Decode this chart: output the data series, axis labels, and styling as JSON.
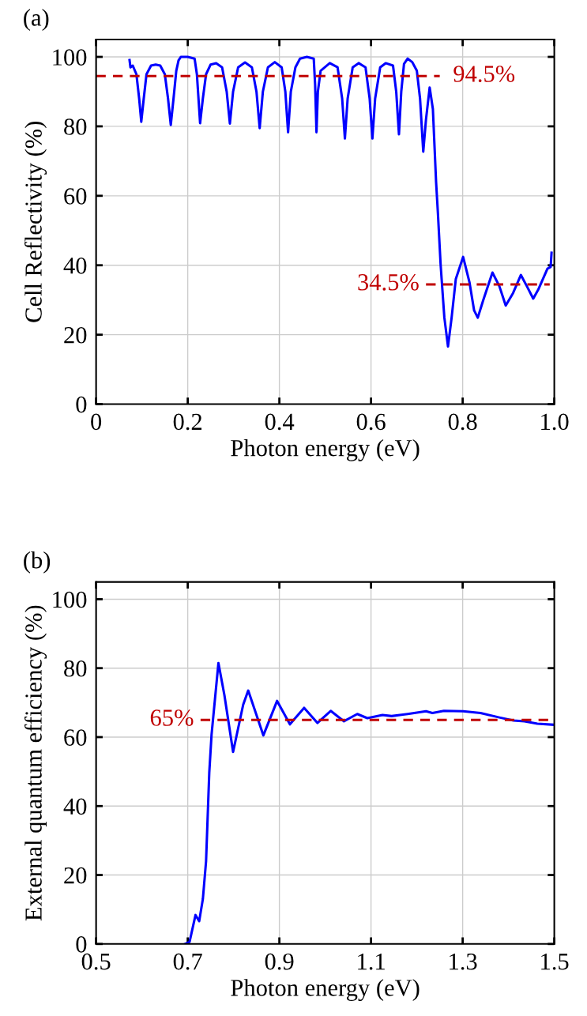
{
  "chart_data": [
    {
      "type": "line",
      "title": "(a)",
      "xlabel": "Photon energy (eV)",
      "ylabel": "Cell Reflectivity (%)",
      "xlim": [
        0,
        1.0
      ],
      "xticks": [
        0,
        0.2,
        0.4,
        0.6,
        0.8,
        {
          "value": 1.0,
          "label": "1.0"
        }
      ],
      "ylim": [
        0,
        105
      ],
      "yticks": [
        0,
        20,
        40,
        60,
        80,
        100
      ],
      "grid": true,
      "series": [
        {
          "color": "#0000ff",
          "x": [
            0.073,
            0.075,
            0.08,
            0.088,
            0.094,
            0.0986,
            0.104,
            0.11,
            0.12,
            0.13,
            0.14,
            0.15,
            0.157,
            0.163,
            0.169,
            0.175,
            0.18,
            0.185,
            0.2,
            0.215,
            0.22,
            0.227,
            0.233,
            0.24,
            0.25,
            0.262,
            0.275,
            0.285,
            0.292,
            0.299,
            0.31,
            0.325,
            0.34,
            0.35,
            0.357,
            0.364,
            0.375,
            0.39,
            0.405,
            0.413,
            0.419,
            0.425,
            0.435,
            0.445,
            0.46,
            0.475,
            0.478,
            0.481,
            0.484,
            0.49,
            0.51,
            0.527,
            0.537,
            0.543,
            0.549,
            0.56,
            0.573,
            0.588,
            0.597,
            0.603,
            0.609,
            0.62,
            0.632,
            0.648,
            0.655,
            0.661,
            0.666,
            0.672,
            0.68,
            0.69,
            0.7,
            0.707,
            0.714,
            0.72,
            0.728,
            0.735,
            0.742,
            0.746,
            0.752,
            0.76,
            0.768,
            0.776,
            0.785,
            0.801,
            0.815,
            0.825,
            0.833,
            0.845,
            0.865,
            0.88,
            0.894,
            0.91,
            0.927,
            0.94,
            0.954,
            0.965,
            0.975,
            0.985,
            0.992,
            0.994
          ],
          "values": [
            99.1,
            97,
            97.5,
            95,
            88,
            81.3,
            88,
            95,
            97.5,
            97.8,
            97.5,
            95,
            88,
            80.4,
            88,
            96,
            99,
            100,
            100,
            99.5,
            95,
            80.9,
            88,
            95,
            97.8,
            98.2,
            97,
            90,
            80.8,
            90,
            97,
            98.4,
            97,
            90,
            79.5,
            90,
            97,
            98.5,
            97,
            90,
            78.3,
            90,
            97,
            99.5,
            100,
            99.5,
            92,
            78.3,
            90,
            96,
            98.2,
            97,
            88,
            76.5,
            88,
            97,
            98.2,
            97,
            88,
            76.5,
            88,
            97,
            98.2,
            97.5,
            90,
            77.7,
            90,
            98,
            99.5,
            98.5,
            96,
            88,
            72.7,
            82,
            91.2,
            85,
            64,
            55,
            40,
            25,
            16.6,
            25,
            36,
            42.4,
            35,
            27,
            24.9,
            30,
            37.9,
            34,
            28.4,
            32,
            37.2,
            34,
            30.4,
            33,
            36,
            39,
            39.5,
            43.6
          ]
        },
        {
          "color": "#c00000",
          "line_style": "dashed",
          "x": [
            0,
            0.75
          ],
          "values": [
            94.5,
            94.5
          ]
        },
        {
          "color": "#c00000",
          "line_style": "dashed",
          "x": [
            0.72,
            0.99
          ],
          "values": [
            34.5,
            34.5
          ]
        }
      ],
      "annotations": [
        {
          "text": "94.5%",
          "x": 0.75,
          "y": 94.5
        },
        {
          "text": "34.5%",
          "x": 0.72,
          "y": 34.5
        }
      ]
    },
    {
      "type": "line",
      "title": "(b)",
      "xlabel": "Photon energy (eV)",
      "ylabel": "External quantum efficiency (%)",
      "xlim": [
        0.5,
        1.5
      ],
      "xticks": [
        0.5,
        0.7,
        0.9,
        1.1,
        1.3,
        1.5
      ],
      "ylim": [
        0,
        105
      ],
      "yticks": [
        0,
        20,
        40,
        60,
        80,
        100
      ],
      "grid": true,
      "series": [
        {
          "color": "#0000ff",
          "x": [
            0.694,
            0.704,
            0.717,
            0.725,
            0.733,
            0.74,
            0.747,
            0.752,
            0.767,
            0.78,
            0.799,
            0.821,
            0.832,
            0.865,
            0.895,
            0.923,
            0.954,
            0.983,
            1.012,
            1.041,
            1.07,
            1.092,
            1.125,
            1.145,
            1.18,
            1.22,
            1.234,
            1.259,
            1.301,
            1.339,
            1.38,
            1.411,
            1.435,
            1.463,
            1.497
          ],
          "values": [
            0,
            0.6,
            8.4,
            6.6,
            13,
            24,
            49.7,
            60.7,
            81.5,
            72.2,
            55.7,
            69.4,
            73.5,
            60.5,
            70.5,
            63.7,
            68.5,
            64.1,
            67.6,
            64.6,
            66.7,
            65.5,
            66.4,
            66.1,
            66.7,
            67.5,
            67.0,
            67.6,
            67.5,
            67.0,
            65.7,
            64.8,
            64.6,
            63.9,
            63.6
          ]
        },
        {
          "color": "#c00000",
          "line_style": "dashed",
          "x": [
            0.728,
            1.49
          ],
          "values": [
            65,
            65
          ]
        }
      ],
      "annotations": [
        {
          "text": "65%",
          "x": 0.728,
          "y": 65
        }
      ]
    }
  ]
}
